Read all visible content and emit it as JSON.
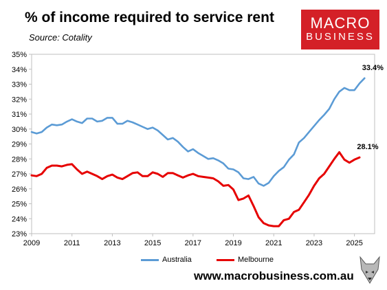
{
  "title": "% of income required to service rent",
  "subtitle": "Source: Cotality",
  "logo": {
    "line1": "MACRO",
    "line2": "BUSINESS"
  },
  "footer": "www.macrobusiness.com.au",
  "colors": {
    "australia": "#5b9bd5",
    "melbourne": "#e60000",
    "logo": "#d42027"
  },
  "chart_data": {
    "type": "line",
    "title": "% of income required to service rent",
    "subtitle": "Source: Cotality",
    "xlabel": "",
    "ylabel": "",
    "xlim": [
      2009,
      2026
    ],
    "ylim": [
      23,
      35
    ],
    "x_ticks": [
      "2009",
      "2011",
      "2013",
      "2015",
      "2017",
      "2019",
      "2021",
      "2023",
      "2025"
    ],
    "y_ticks": [
      "23%",
      "24%",
      "25%",
      "26%",
      "27%",
      "28%",
      "29%",
      "30%",
      "31%",
      "32%",
      "33%",
      "34%",
      "35%"
    ],
    "grid": false,
    "legend": "bottom",
    "series": [
      {
        "name": "Australia",
        "color": "#5b9bd5",
        "end_label": "33.4%",
        "points": [
          [
            2009.0,
            29.8
          ],
          [
            2009.25,
            29.7
          ],
          [
            2009.5,
            29.8
          ],
          [
            2009.75,
            30.1
          ],
          [
            2010.0,
            30.3
          ],
          [
            2010.25,
            30.25
          ],
          [
            2010.5,
            30.3
          ],
          [
            2010.75,
            30.5
          ],
          [
            2011.0,
            30.65
          ],
          [
            2011.25,
            30.5
          ],
          [
            2011.5,
            30.4
          ],
          [
            2011.75,
            30.7
          ],
          [
            2012.0,
            30.7
          ],
          [
            2012.25,
            30.5
          ],
          [
            2012.5,
            30.55
          ],
          [
            2012.75,
            30.75
          ],
          [
            2013.0,
            30.75
          ],
          [
            2013.25,
            30.35
          ],
          [
            2013.5,
            30.35
          ],
          [
            2013.75,
            30.55
          ],
          [
            2014.0,
            30.45
          ],
          [
            2014.25,
            30.3
          ],
          [
            2014.5,
            30.15
          ],
          [
            2014.75,
            30.0
          ],
          [
            2015.0,
            30.1
          ],
          [
            2015.25,
            29.9
          ],
          [
            2015.5,
            29.6
          ],
          [
            2015.75,
            29.3
          ],
          [
            2016.0,
            29.4
          ],
          [
            2016.25,
            29.15
          ],
          [
            2016.5,
            28.8
          ],
          [
            2016.75,
            28.5
          ],
          [
            2017.0,
            28.65
          ],
          [
            2017.25,
            28.4
          ],
          [
            2017.5,
            28.2
          ],
          [
            2017.75,
            28.0
          ],
          [
            2018.0,
            28.05
          ],
          [
            2018.25,
            27.9
          ],
          [
            2018.5,
            27.7
          ],
          [
            2018.75,
            27.35
          ],
          [
            2019.0,
            27.3
          ],
          [
            2019.25,
            27.1
          ],
          [
            2019.5,
            26.7
          ],
          [
            2019.75,
            26.65
          ],
          [
            2020.0,
            26.8
          ],
          [
            2020.25,
            26.35
          ],
          [
            2020.5,
            26.2
          ],
          [
            2020.75,
            26.4
          ],
          [
            2021.0,
            26.85
          ],
          [
            2021.25,
            27.2
          ],
          [
            2021.5,
            27.45
          ],
          [
            2021.75,
            27.95
          ],
          [
            2022.0,
            28.3
          ],
          [
            2022.25,
            29.1
          ],
          [
            2022.5,
            29.4
          ],
          [
            2022.75,
            29.8
          ],
          [
            2023.0,
            30.2
          ],
          [
            2023.25,
            30.6
          ],
          [
            2023.5,
            30.95
          ],
          [
            2023.75,
            31.35
          ],
          [
            2024.0,
            32.0
          ],
          [
            2024.25,
            32.5
          ],
          [
            2024.5,
            32.75
          ],
          [
            2024.75,
            32.6
          ],
          [
            2025.0,
            32.6
          ],
          [
            2025.25,
            33.05
          ],
          [
            2025.5,
            33.4
          ]
        ]
      },
      {
        "name": "Melbourne",
        "color": "#e60000",
        "end_label": "28.1%",
        "points": [
          [
            2009.0,
            26.9
          ],
          [
            2009.25,
            26.85
          ],
          [
            2009.5,
            27.0
          ],
          [
            2009.75,
            27.4
          ],
          [
            2010.0,
            27.55
          ],
          [
            2010.25,
            27.55
          ],
          [
            2010.5,
            27.5
          ],
          [
            2010.75,
            27.6
          ],
          [
            2011.0,
            27.65
          ],
          [
            2011.25,
            27.3
          ],
          [
            2011.5,
            27.0
          ],
          [
            2011.75,
            27.15
          ],
          [
            2012.0,
            27.0
          ],
          [
            2012.25,
            26.85
          ],
          [
            2012.5,
            26.65
          ],
          [
            2012.75,
            26.85
          ],
          [
            2013.0,
            26.95
          ],
          [
            2013.25,
            26.75
          ],
          [
            2013.5,
            26.65
          ],
          [
            2013.75,
            26.85
          ],
          [
            2014.0,
            27.05
          ],
          [
            2014.25,
            27.1
          ],
          [
            2014.5,
            26.85
          ],
          [
            2014.75,
            26.85
          ],
          [
            2015.0,
            27.1
          ],
          [
            2015.25,
            27.0
          ],
          [
            2015.5,
            26.8
          ],
          [
            2015.75,
            27.05
          ],
          [
            2016.0,
            27.05
          ],
          [
            2016.25,
            26.9
          ],
          [
            2016.5,
            26.75
          ],
          [
            2016.75,
            26.9
          ],
          [
            2017.0,
            27.0
          ],
          [
            2017.25,
            26.85
          ],
          [
            2017.5,
            26.8
          ],
          [
            2017.75,
            26.75
          ],
          [
            2018.0,
            26.7
          ],
          [
            2018.25,
            26.5
          ],
          [
            2018.5,
            26.2
          ],
          [
            2018.75,
            26.25
          ],
          [
            2019.0,
            25.95
          ],
          [
            2019.25,
            25.25
          ],
          [
            2019.5,
            25.35
          ],
          [
            2019.75,
            25.55
          ],
          [
            2020.0,
            24.85
          ],
          [
            2020.25,
            24.1
          ],
          [
            2020.5,
            23.7
          ],
          [
            2020.75,
            23.55
          ],
          [
            2021.0,
            23.5
          ],
          [
            2021.25,
            23.5
          ],
          [
            2021.5,
            23.9
          ],
          [
            2021.75,
            24.0
          ],
          [
            2022.0,
            24.45
          ],
          [
            2022.25,
            24.6
          ],
          [
            2022.5,
            25.1
          ],
          [
            2022.75,
            25.6
          ],
          [
            2023.0,
            26.2
          ],
          [
            2023.25,
            26.7
          ],
          [
            2023.5,
            27.0
          ],
          [
            2023.75,
            27.5
          ],
          [
            2024.0,
            28.0
          ],
          [
            2024.25,
            28.45
          ],
          [
            2024.5,
            27.95
          ],
          [
            2024.75,
            27.75
          ],
          [
            2025.0,
            27.95
          ],
          [
            2025.25,
            28.1
          ]
        ]
      }
    ]
  }
}
